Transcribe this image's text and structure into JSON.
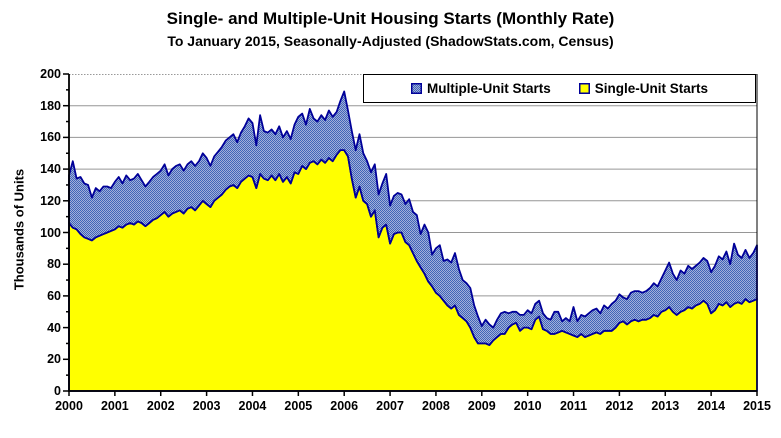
{
  "title": "Single- and Multiple-Unit Housing Starts (Monthly Rate)",
  "subtitle": "To January 2015, Seasonally-Adjusted (ShadowStats.com, Census)",
  "legend": {
    "multiple_label": "Multiple-Unit Starts",
    "single_label": "Single-Unit Starts"
  },
  "colors": {
    "single_fill": "#FFFF00",
    "multiple_fill_dark": "#4066B8",
    "multiple_fill_light": "#A3AEDA",
    "outline": "#000099",
    "gridline": "#969696",
    "axis": "#000000",
    "top_border": "#999999"
  },
  "chart_data": {
    "type": "area",
    "stacked": true,
    "title": "Single- and Multiple-Unit Housing Starts (Monthly Rate)",
    "subtitle": "To January 2015, Seasonally-Adjusted (ShadowStats.com, Census)",
    "xlabel": "",
    "ylabel": "Thousands of Units",
    "ylim": [
      0,
      200
    ],
    "y_ticks": [
      0,
      20,
      40,
      60,
      80,
      100,
      120,
      140,
      160,
      180,
      200
    ],
    "x_ticks": [
      "2000",
      "2001",
      "2002",
      "2003",
      "2004",
      "2005",
      "2006",
      "2007",
      "2008",
      "2009",
      "2010",
      "2011",
      "2012",
      "2013",
      "2014",
      "2015"
    ],
    "x_start": "2000-01",
    "x_end": "2015-01",
    "frequency": "monthly",
    "legend_position": "top-right-inside",
    "grid": "horizontal",
    "series": [
      {
        "name": "Single-Unit Starts",
        "fill": "solid-yellow",
        "values": [
          106,
          103,
          102,
          99,
          97,
          96,
          95,
          97,
          98,
          99,
          100,
          101,
          102,
          104,
          103,
          105,
          106,
          105,
          107,
          106,
          104,
          106,
          108,
          109,
          111,
          113,
          110,
          112,
          113,
          114,
          112,
          115,
          116,
          114,
          117,
          120,
          118,
          116,
          120,
          122,
          124,
          127,
          129,
          130,
          128,
          132,
          134,
          136,
          135,
          128,
          137,
          134,
          133,
          136,
          133,
          137,
          132,
          135,
          131,
          138,
          137,
          142,
          140,
          144,
          145,
          143,
          146,
          144,
          147,
          145,
          149,
          152,
          152,
          148,
          134,
          122,
          129,
          120,
          118,
          110,
          114,
          97,
          103,
          105,
          93,
          99,
          100,
          100,
          94,
          92,
          87,
          82,
          78,
          74,
          69,
          66,
          62,
          60,
          57,
          54,
          52,
          54,
          48,
          46,
          44,
          40,
          34,
          30,
          30,
          30,
          29,
          32,
          34,
          36,
          36,
          40,
          42,
          43,
          38,
          40,
          40,
          39,
          45,
          47,
          39,
          38,
          36,
          36,
          37,
          38,
          37,
          36,
          35,
          34,
          36,
          34,
          35,
          36,
          37,
          36,
          38,
          38,
          38,
          40,
          43,
          44,
          42,
          44,
          45,
          44,
          45,
          45,
          46,
          48,
          47,
          50,
          51,
          53,
          50,
          48,
          50,
          51,
          53,
          52,
          54,
          55,
          57,
          55,
          49,
          51,
          55,
          54,
          56,
          53,
          55,
          56,
          55,
          58,
          56,
          57,
          58
        ]
      },
      {
        "name": "Multiple-Unit Starts",
        "fill": "blue-crosshatch",
        "values": [
          30,
          42,
          32,
          36,
          34,
          34,
          27,
          31,
          28,
          30,
          29,
          27,
          30,
          31,
          28,
          31,
          27,
          29,
          30,
          27,
          25,
          26,
          27,
          28,
          28,
          30,
          26,
          28,
          29,
          29,
          27,
          28,
          29,
          28,
          28,
          30,
          29,
          26,
          28,
          29,
          30,
          31,
          31,
          32,
          29,
          31,
          33,
          36,
          34,
          27,
          37,
          30,
          30,
          29,
          29,
          30,
          28,
          29,
          28,
          30,
          36,
          33,
          28,
          34,
          27,
          27,
          28,
          27,
          30,
          28,
          27,
          31,
          37,
          29,
          30,
          30,
          33,
          30,
          27,
          28,
          29,
          27,
          28,
          32,
          24,
          24,
          25,
          24,
          24,
          29,
          26,
          29,
          21,
          31,
          31,
          20,
          28,
          32,
          25,
          29,
          29,
          33,
          29,
          24,
          24,
          25,
          20,
          17,
          11,
          15,
          13,
          8,
          11,
          13,
          14,
          9,
          8,
          7,
          10,
          8,
          11,
          10,
          10,
          10,
          10,
          8,
          9,
          14,
          13,
          6,
          9,
          8,
          18,
          10,
          12,
          13,
          14,
          15,
          15,
          13,
          16,
          14,
          17,
          17,
          18,
          15,
          16,
          18,
          18,
          19,
          17,
          18,
          19,
          20,
          19,
          21,
          25,
          28,
          24,
          22,
          26,
          23,
          26,
          25,
          25,
          26,
          27,
          27,
          26,
          28,
          30,
          29,
          32,
          27,
          38,
          30,
          29,
          31,
          28,
          30,
          34
        ]
      }
    ]
  }
}
